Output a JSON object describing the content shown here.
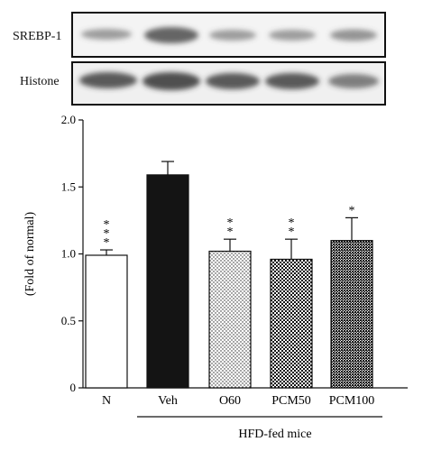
{
  "blots": {
    "srebp_label": "SREBP-1",
    "histone_label": "Histone"
  },
  "chart_data": {
    "type": "bar",
    "categories": [
      "N",
      "Veh",
      "O60",
      "PCM50",
      "PCM100"
    ],
    "values": [
      0.99,
      1.59,
      1.02,
      0.96,
      1.1
    ],
    "errors": [
      0.04,
      0.1,
      0.09,
      0.15,
      0.17
    ],
    "significance": [
      "***",
      "",
      "**",
      "**",
      "*"
    ],
    "patterns": [
      "white",
      "black",
      "dots",
      "checker",
      "dense-checker"
    ],
    "ylabel": "(Fold of normal)",
    "ylim": [
      0,
      2.0
    ],
    "yticks": [
      "0",
      "0.5",
      "1.0",
      "1.5",
      "2.0"
    ],
    "group_label": "HFD-fed mice",
    "grid": false
  }
}
